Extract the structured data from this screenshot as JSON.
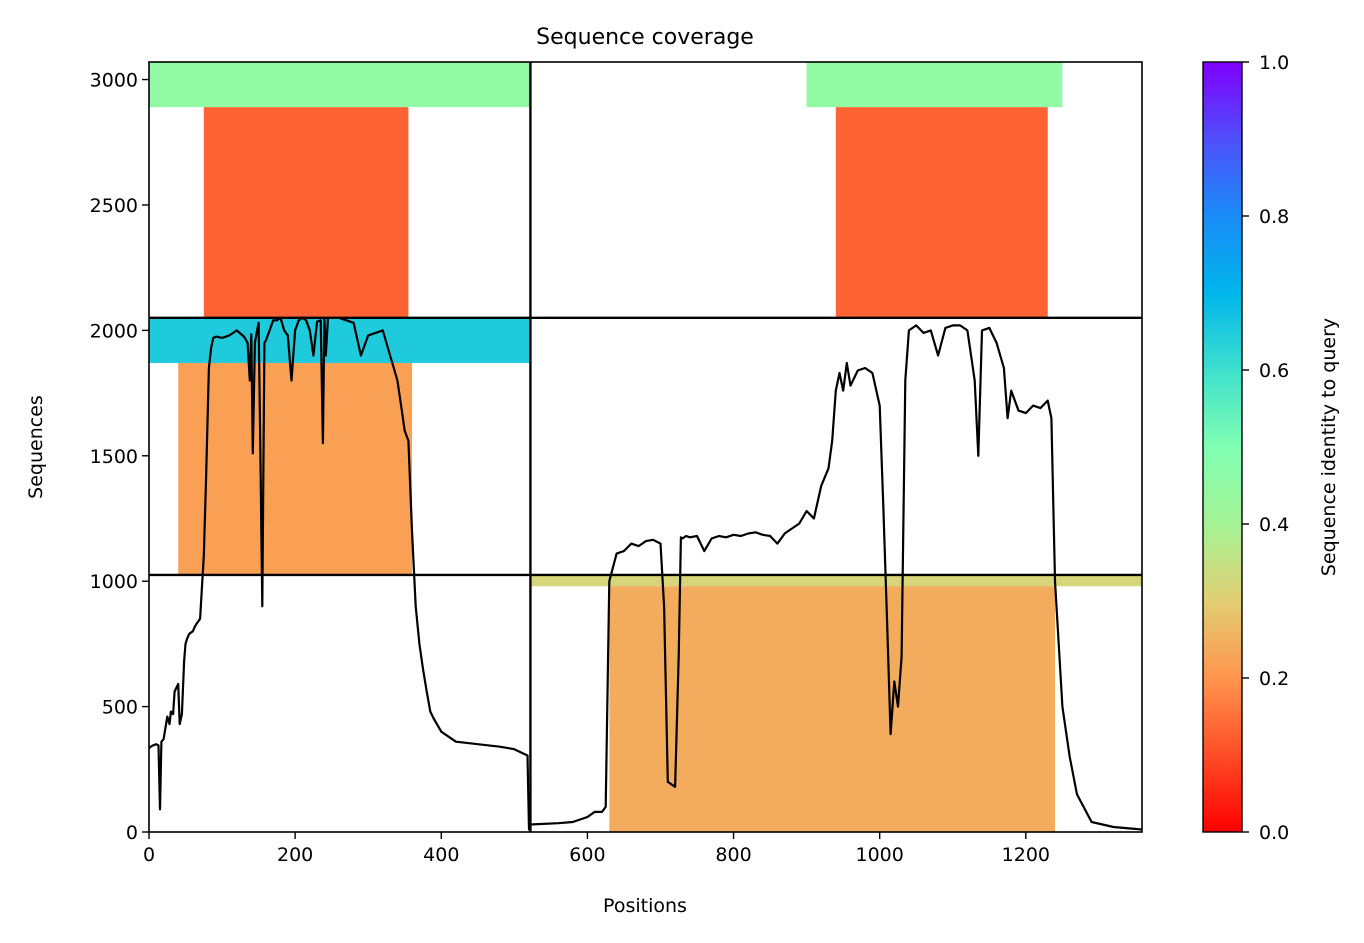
{
  "chart_data": {
    "type": "heatmap",
    "title": "Sequence coverage",
    "xlabel": "Positions",
    "ylabel": "Sequences",
    "xlim": [
      0,
      1359
    ],
    "ylim": [
      0,
      3070
    ],
    "xticks": [
      "0",
      "200",
      "400",
      "600",
      "800",
      "1000",
      "1200"
    ],
    "xtick_values": [
      0,
      200,
      400,
      600,
      800,
      1000,
      1200
    ],
    "yticks": [
      "0",
      "500",
      "1000",
      "1500",
      "2000",
      "2500",
      "3000"
    ],
    "ytick_values": [
      0,
      500,
      1000,
      1500,
      2000,
      2500,
      3000
    ],
    "colorbar": {
      "label": "Sequence identity to query",
      "range": [
        0.0,
        1.0
      ],
      "ticks": [
        "0.0",
        "0.2",
        "0.4",
        "0.6",
        "0.8",
        "1.0"
      ],
      "tick_values": [
        0.0,
        0.2,
        0.4,
        0.6,
        0.8,
        1.0
      ],
      "colormap": "rainbow_r"
    },
    "block_boundaries": {
      "x": [
        522
      ],
      "y": [
        1025,
        2050
      ]
    },
    "coverage_blocks": [
      {
        "x": [
          0,
          522
        ],
        "y": [
          2890,
          3070
        ],
        "identity": 0.45,
        "note": "top band"
      },
      {
        "x": [
          75,
          355
        ],
        "y": [
          2050,
          2890
        ],
        "identity": 0.13
      },
      {
        "x": [
          900,
          1250
        ],
        "y": [
          2890,
          3070
        ],
        "identity": 0.45
      },
      {
        "x": [
          940,
          1230
        ],
        "y": [
          2050,
          2890
        ],
        "identity": 0.13
      },
      {
        "x": [
          0,
          522
        ],
        "y": [
          1870,
          2050
        ],
        "identity": 0.65
      },
      {
        "x": [
          40,
          360
        ],
        "y": [
          1025,
          1870
        ],
        "identity": 0.22
      },
      {
        "x": [
          522,
          1359
        ],
        "y": [
          980,
          1025
        ],
        "identity": 0.32
      },
      {
        "x": [
          630,
          1240
        ],
        "y": [
          0,
          980
        ],
        "identity": 0.24
      }
    ],
    "series": [
      {
        "x": [
          0,
          5,
          10,
          13,
          15,
          17,
          20,
          25,
          28,
          30,
          33,
          35,
          40,
          42,
          45,
          48,
          50,
          52,
          55,
          60,
          63,
          65,
          70,
          73,
          75,
          78,
          82,
          85,
          88,
          92,
          100,
          110,
          120,
          130,
          135,
          138,
          140,
          142,
          145,
          148,
          150,
          152,
          155,
          158,
          160,
          165,
          170,
          175,
          180,
          185,
          190,
          195,
          200,
          205,
          210,
          215,
          220,
          225,
          230,
          235,
          238,
          240,
          242,
          245,
          250,
          255,
          260,
          270,
          280,
          290,
          300,
          310,
          320,
          330,
          335,
          340,
          345,
          350,
          355,
          360,
          365,
          370,
          375,
          380,
          385,
          390,
          400,
          420,
          450,
          480,
          500,
          518,
          520,
          522
        ],
        "y": [
          335,
          345,
          350,
          345,
          90,
          360,
          370,
          460,
          430,
          480,
          470,
          560,
          590,
          430,
          470,
          680,
          750,
          770,
          790,
          800,
          820,
          830,
          850,
          1000,
          1100,
          1400,
          1850,
          1930,
          1970,
          1975,
          1970,
          1980,
          2000,
          1975,
          1950,
          1800,
          1985,
          1510,
          1950,
          2000,
          2030,
          1600,
          900,
          1950,
          1960,
          2000,
          2040,
          2040,
          2050,
          2000,
          1980,
          1800,
          2000,
          2040,
          2050,
          2040,
          2000,
          1900,
          2035,
          2040,
          1550,
          2050,
          1900,
          2050,
          2050,
          2050,
          2050,
          2040,
          2030,
          1900,
          1980,
          1990,
          2000,
          1900,
          1850,
          1800,
          1700,
          1600,
          1560,
          1200,
          900,
          750,
          650,
          560,
          480,
          450,
          400,
          360,
          350,
          340,
          330,
          305,
          10,
          30
        ]
      },
      {
        "x": [
          522,
          560,
          580,
          600,
          610,
          620,
          625,
          630,
          640,
          650,
          660,
          670,
          680,
          690,
          700,
          705,
          710,
          715,
          720,
          725,
          728,
          730,
          735,
          740,
          750,
          760,
          770,
          780,
          790,
          800,
          810,
          820,
          830,
          840,
          850,
          860,
          870,
          880,
          890,
          900,
          910,
          920,
          930,
          935,
          940,
          945,
          950,
          955,
          960,
          970,
          980,
          990,
          1000,
          1005,
          1010,
          1015,
          1020,
          1025,
          1030,
          1035,
          1040,
          1045,
          1050,
          1060,
          1070,
          1080,
          1090,
          1100,
          1110,
          1120,
          1130,
          1135,
          1140,
          1150,
          1160,
          1170,
          1175,
          1180,
          1190,
          1200,
          1210,
          1220,
          1230,
          1235,
          1240,
          1250,
          1260,
          1270,
          1290,
          1320,
          1359
        ],
        "y": [
          30,
          35,
          40,
          60,
          80,
          80,
          100,
          1000,
          1110,
          1120,
          1150,
          1140,
          1160,
          1165,
          1150,
          900,
          200,
          190,
          180,
          700,
          1175,
          1170,
          1180,
          1175,
          1180,
          1120,
          1170,
          1180,
          1175,
          1185,
          1180,
          1190,
          1195,
          1185,
          1180,
          1150,
          1190,
          1210,
          1230,
          1280,
          1250,
          1380,
          1450,
          1560,
          1760,
          1830,
          1760,
          1870,
          1780,
          1840,
          1850,
          1830,
          1700,
          1300,
          850,
          390,
          600,
          500,
          700,
          1800,
          2000,
          2010,
          2020,
          1990,
          2000,
          1900,
          2010,
          2020,
          2020,
          2000,
          1800,
          1500,
          2000,
          2010,
          1950,
          1850,
          1650,
          1760,
          1680,
          1670,
          1700,
          1690,
          1720,
          1650,
          1000,
          500,
          300,
          150,
          40,
          20,
          10
        ]
      }
    ]
  }
}
